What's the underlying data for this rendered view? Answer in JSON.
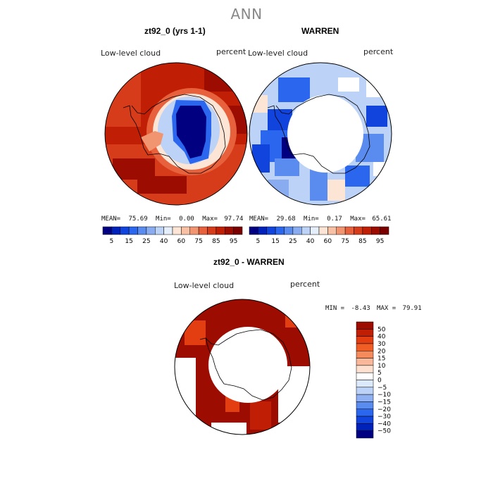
{
  "page_title": "ANN",
  "palette_scale": [
    "#000080",
    "#0022bb",
    "#1144dd",
    "#2a66ee",
    "#5a8bee",
    "#89abf0",
    "#bcd2f6",
    "#e5eefb",
    "#fde5d6",
    "#f8c0a4",
    "#f19470",
    "#e8613d",
    "#d63c1a",
    "#c01f06",
    "#9c0c00",
    "#7a0000"
  ],
  "palette_diff": [
    "#7a0000",
    "#9c0c00",
    "#c01f06",
    "#e23e12",
    "#f05e26",
    "#f58b5c",
    "#f9b89a",
    "#fde0d0",
    "#ffffff",
    "#dce8fb",
    "#bcd2f6",
    "#8fb0f2",
    "#5a8bee",
    "#2a66ee",
    "#1144dd",
    "#0022bb",
    "#000080"
  ],
  "chart_data": [
    {
      "type": "heatmap",
      "projection": "south-polar-stereographic",
      "title": "zt92_0 (yrs 1-1)",
      "field_label": "Low-level cloud",
      "units": "percent",
      "stats": {
        "mean_label": "MEAN=",
        "mean": "75.69",
        "min_label": "Min=",
        "min": "0.00",
        "max_label": "Max=",
        "max": "97.74"
      },
      "colorbar_ticks": [
        "5",
        "15",
        "25",
        "40",
        "60",
        "75",
        "85",
        "95"
      ]
    },
    {
      "type": "heatmap",
      "projection": "south-polar-stereographic",
      "title": "WARREN",
      "field_label": "Low-level cloud",
      "units": "percent",
      "stats": {
        "mean_label": "MEAN=",
        "mean": "29.68",
        "min_label": "Min=",
        "min": "0.17",
        "max_label": "Max=",
        "max": "65.61"
      },
      "colorbar_ticks": [
        "5",
        "15",
        "25",
        "40",
        "60",
        "75",
        "85",
        "95"
      ]
    },
    {
      "type": "heatmap",
      "projection": "south-polar-stereographic",
      "title": "zt92_0 - WARREN",
      "field_label": "Low-level cloud",
      "units": "percent",
      "stats": {
        "min_label": "MIN =",
        "min": "-8.43",
        "max_label": "MAX =",
        "max": "79.91"
      },
      "colorbar_ticks": [
        "50",
        "40",
        "30",
        "20",
        "15",
        "10",
        "5",
        "0",
        "−5",
        "−10",
        "−15",
        "−20",
        "−30",
        "−40",
        "−50"
      ]
    }
  ]
}
